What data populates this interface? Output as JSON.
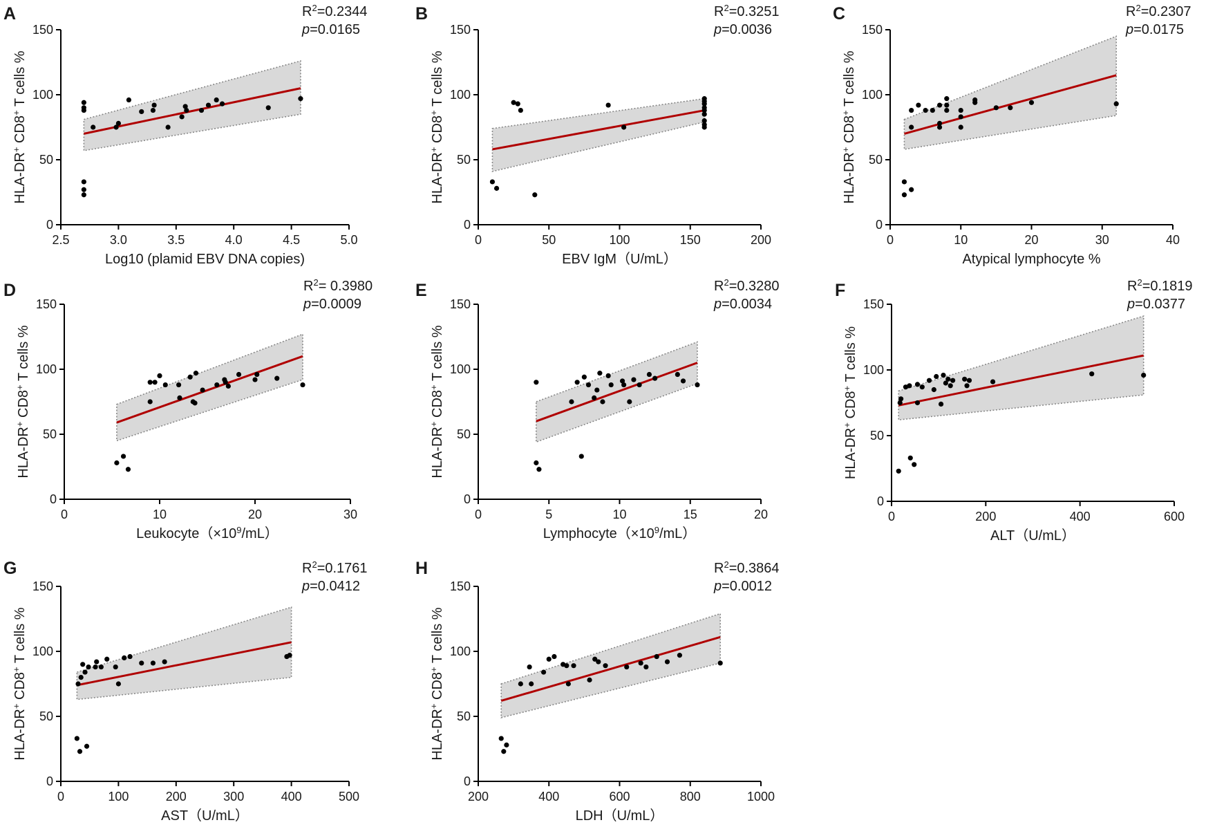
{
  "figure": {
    "ylabel": "HLA-DR⁺ CD8⁺ T cells %"
  },
  "chart_data": [
    {
      "panel": "A",
      "type": "scatter",
      "xlabel": "Log10 (plamid EBV DNA copies)",
      "ylabel": "HLA-DR⁺ CD8⁺ T cells %",
      "stats": {
        "r2_label": "R²=0.2344",
        "p_label": "=0.0165",
        "p_symbol": "p"
      },
      "xlim": [
        2.5,
        5.0
      ],
      "ylim": [
        0,
        150
      ],
      "xticks": [
        2.5,
        3.0,
        3.5,
        4.0,
        4.5,
        5.0
      ],
      "xtick_labels": [
        "2.5",
        "3.0",
        "3.5",
        "4.0",
        "4.5",
        "5.0"
      ],
      "yticks": [
        0,
        50,
        100,
        150
      ],
      "ytick_labels": [
        "0",
        "50",
        "100",
        "150"
      ],
      "fit": {
        "x": [
          2.7,
          4.58
        ],
        "y": [
          70,
          105
        ],
        "lower": [
          57,
          85
        ],
        "upper": [
          81,
          126
        ]
      },
      "points": [
        [
          2.7,
          94
        ],
        [
          2.7,
          90
        ],
        [
          2.7,
          88
        ],
        [
          2.7,
          33
        ],
        [
          2.7,
          27
        ],
        [
          2.7,
          23
        ],
        [
          2.78,
          75
        ],
        [
          2.98,
          75
        ],
        [
          3.0,
          78
        ],
        [
          3.09,
          96
        ],
        [
          3.2,
          87
        ],
        [
          3.3,
          88
        ],
        [
          3.31,
          92
        ],
        [
          3.43,
          75
        ],
        [
          3.55,
          83
        ],
        [
          3.58,
          91
        ],
        [
          3.59,
          88
        ],
        [
          3.72,
          88
        ],
        [
          3.78,
          92
        ],
        [
          3.85,
          96
        ],
        [
          3.9,
          93
        ],
        [
          4.3,
          90
        ],
        [
          4.58,
          97
        ]
      ]
    },
    {
      "panel": "B",
      "type": "scatter",
      "xlabel": "EBV IgM（U/mL）",
      "ylabel": "HLA-DR⁺ CD8⁺ T cells %",
      "stats": {
        "r2_label": "R²=0.3251",
        "p_label": "=0.0036",
        "p_symbol": "p"
      },
      "xlim": [
        0,
        200
      ],
      "ylim": [
        0,
        150
      ],
      "xticks": [
        0,
        50,
        100,
        150,
        200
      ],
      "xtick_labels": [
        "0",
        "50",
        "100",
        "150",
        "200"
      ],
      "yticks": [
        0,
        50,
        100,
        150
      ],
      "ytick_labels": [
        "0",
        "50",
        "100",
        "150"
      ],
      "fit": {
        "x": [
          10,
          160
        ],
        "y": [
          58,
          88
        ],
        "lower": [
          41,
          79
        ],
        "upper": [
          74,
          97
        ]
      },
      "points": [
        [
          10,
          33
        ],
        [
          13,
          28
        ],
        [
          25,
          94
        ],
        [
          28,
          93
        ],
        [
          30,
          88
        ],
        [
          40,
          23
        ],
        [
          92,
          92
        ],
        [
          103,
          75
        ],
        [
          160,
          97
        ],
        [
          160,
          95
        ],
        [
          160,
          93
        ],
        [
          160,
          90
        ],
        [
          160,
          88
        ],
        [
          160,
          85
        ],
        [
          160,
          80
        ],
        [
          160,
          77
        ],
        [
          160,
          75
        ]
      ]
    },
    {
      "panel": "C",
      "type": "scatter",
      "xlabel": "Atypical lymphocyte %",
      "ylabel": "HLA-DR⁺ CD8⁺ T cells %",
      "stats": {
        "r2_label": "R²=0.2307",
        "p_label": "=0.0175",
        "p_symbol": "p"
      },
      "xlim": [
        0,
        40
      ],
      "ylim": [
        0,
        150
      ],
      "xticks": [
        0,
        10,
        20,
        30,
        40
      ],
      "xtick_labels": [
        "0",
        "10",
        "20",
        "30",
        "40"
      ],
      "yticks": [
        0,
        50,
        100,
        150
      ],
      "ytick_labels": [
        "0",
        "50",
        "100",
        "150"
      ],
      "fit": {
        "x": [
          2,
          32
        ],
        "y": [
          70,
          115
        ],
        "lower": [
          58,
          84
        ],
        "upper": [
          81,
          145
        ]
      },
      "points": [
        [
          2,
          33
        ],
        [
          2,
          23
        ],
        [
          3,
          27
        ],
        [
          3,
          75
        ],
        [
          3,
          88
        ],
        [
          4,
          92
        ],
        [
          5,
          88
        ],
        [
          6,
          88
        ],
        [
          7,
          78
        ],
        [
          7,
          75
        ],
        [
          7,
          92
        ],
        [
          8,
          97
        ],
        [
          8,
          92
        ],
        [
          8,
          88
        ],
        [
          10,
          88
        ],
        [
          10,
          83
        ],
        [
          10,
          75
        ],
        [
          12,
          96
        ],
        [
          12,
          94
        ],
        [
          15,
          90
        ],
        [
          17,
          90
        ],
        [
          20,
          94
        ],
        [
          32,
          93
        ]
      ]
    },
    {
      "panel": "D",
      "type": "scatter",
      "xlabel": "Leukocyte（×10⁹/mL）",
      "ylabel": "HLA-DR⁺ CD8⁺ T cells %",
      "stats": {
        "r2_label": "R²= 0.3980",
        "p_label": "=0.0009",
        "p_symbol": "p"
      },
      "xlim": [
        0,
        30
      ],
      "ylim": [
        0,
        150
      ],
      "xticks": [
        0,
        10,
        20,
        30
      ],
      "xtick_labels": [
        "0",
        "10",
        "20",
        "30"
      ],
      "yticks": [
        0,
        50,
        100,
        150
      ],
      "ytick_labels": [
        "0",
        "50",
        "100",
        "150"
      ],
      "fit": {
        "x": [
          5.5,
          25
        ],
        "y": [
          59,
          110
        ],
        "lower": [
          45,
          92
        ],
        "upper": [
          73,
          127
        ]
      },
      "points": [
        [
          5.5,
          28
        ],
        [
          6.2,
          33
        ],
        [
          6.7,
          23
        ],
        [
          9,
          75
        ],
        [
          9,
          90
        ],
        [
          9.5,
          90
        ],
        [
          10,
          95
        ],
        [
          10.6,
          88
        ],
        [
          12,
          88
        ],
        [
          12.1,
          78
        ],
        [
          13.2,
          94
        ],
        [
          13.5,
          75
        ],
        [
          13.7,
          74
        ],
        [
          13.8,
          97
        ],
        [
          14.5,
          84
        ],
        [
          16,
          88
        ],
        [
          16.8,
          92
        ],
        [
          16.9,
          90
        ],
        [
          17.2,
          87
        ],
        [
          18.3,
          96
        ],
        [
          20,
          92
        ],
        [
          20.2,
          96
        ],
        [
          22.3,
          93
        ],
        [
          25,
          88
        ]
      ]
    },
    {
      "panel": "E",
      "type": "scatter",
      "xlabel": "Lymphocyte（×10⁹/mL）",
      "ylabel": "HLA-DR⁺ CD8⁺ T cells %",
      "stats": {
        "r2_label": "R²=0.3280",
        "p_label": "=0.0034",
        "p_symbol": "p"
      },
      "xlim": [
        0,
        20
      ],
      "ylim": [
        0,
        150
      ],
      "xticks": [
        0,
        5,
        10,
        15,
        20
      ],
      "xtick_labels": [
        "0",
        "5",
        "10",
        "15",
        "20"
      ],
      "yticks": [
        0,
        50,
        100,
        150
      ],
      "ytick_labels": [
        "0",
        "50",
        "100",
        "150"
      ],
      "fit": {
        "x": [
          4.1,
          15.5
        ],
        "y": [
          60,
          105
        ],
        "lower": [
          44,
          89
        ],
        "upper": [
          75,
          121
        ]
      },
      "points": [
        [
          4.1,
          90
        ],
        [
          4.1,
          28
        ],
        [
          4.3,
          23
        ],
        [
          6.6,
          75
        ],
        [
          7,
          90
        ],
        [
          7.3,
          33
        ],
        [
          7.5,
          94
        ],
        [
          7.8,
          88
        ],
        [
          8.2,
          78
        ],
        [
          8.4,
          84
        ],
        [
          8.6,
          97
        ],
        [
          8.8,
          75
        ],
        [
          9.2,
          95
        ],
        [
          9.4,
          88
        ],
        [
          10.2,
          91
        ],
        [
          10.3,
          88
        ],
        [
          10.7,
          75
        ],
        [
          11,
          92
        ],
        [
          11.4,
          88
        ],
        [
          12.1,
          96
        ],
        [
          12.5,
          93
        ],
        [
          14.1,
          96
        ],
        [
          14.5,
          91
        ],
        [
          15.5,
          88
        ]
      ]
    },
    {
      "panel": "F",
      "type": "scatter",
      "xlabel": "ALT（U/mL）",
      "ylabel": "HLA-DR⁺ CD8⁺ T cells %",
      "stats": {
        "r2_label": "R²=0.1819",
        "p_label": "=0.0377",
        "p_symbol": "p"
      },
      "xlim": [
        0,
        600
      ],
      "ylim": [
        0,
        150
      ],
      "xticks": [
        0,
        200,
        400,
        600
      ],
      "xtick_labels": [
        "0",
        "200",
        "400",
        "600"
      ],
      "yticks": [
        0,
        50,
        100,
        150
      ],
      "ytick_labels": [
        "0",
        "50",
        "100",
        "150"
      ],
      "fit": {
        "x": [
          15,
          535
        ],
        "y": [
          73,
          111
        ],
        "lower": [
          62,
          81
        ],
        "upper": [
          84,
          141
        ]
      },
      "points": [
        [
          15,
          23
        ],
        [
          18,
          75
        ],
        [
          20,
          78
        ],
        [
          30,
          87
        ],
        [
          38,
          88
        ],
        [
          40,
          33
        ],
        [
          48,
          28
        ],
        [
          55,
          75
        ],
        [
          55,
          89
        ],
        [
          65,
          87
        ],
        [
          80,
          92
        ],
        [
          90,
          85
        ],
        [
          95,
          95
        ],
        [
          105,
          74
        ],
        [
          110,
          96
        ],
        [
          115,
          90
        ],
        [
          120,
          93
        ],
        [
          125,
          88
        ],
        [
          130,
          92
        ],
        [
          155,
          93
        ],
        [
          160,
          88
        ],
        [
          165,
          92
        ],
        [
          215,
          91
        ],
        [
          425,
          97
        ],
        [
          535,
          96
        ]
      ]
    },
    {
      "panel": "G",
      "type": "scatter",
      "xlabel": "AST（U/mL）",
      "ylabel": "HLA-DR⁺ CD8⁺ T cells %",
      "stats": {
        "r2_label": "R²=0.1761",
        "p_label": "=0.0412",
        "p_symbol": "p"
      },
      "xlim": [
        0,
        500
      ],
      "ylim": [
        0,
        150
      ],
      "xticks": [
        0,
        100,
        200,
        300,
        400,
        500
      ],
      "xtick_labels": [
        "0",
        "100",
        "200",
        "300",
        "400",
        "500"
      ],
      "yticks": [
        0,
        50,
        100,
        150
      ],
      "ytick_labels": [
        "0",
        "50",
        "100",
        "150"
      ],
      "fit": {
        "x": [
          28,
          400
        ],
        "y": [
          74,
          107
        ],
        "lower": [
          63,
          80
        ],
        "upper": [
          84,
          134
        ]
      },
      "points": [
        [
          28,
          33
        ],
        [
          30,
          75
        ],
        [
          33,
          23
        ],
        [
          35,
          80
        ],
        [
          38,
          90
        ],
        [
          42,
          84
        ],
        [
          45,
          27
        ],
        [
          48,
          88
        ],
        [
          60,
          88
        ],
        [
          62,
          92
        ],
        [
          70,
          88
        ],
        [
          80,
          94
        ],
        [
          95,
          88
        ],
        [
          100,
          75
        ],
        [
          110,
          95
        ],
        [
          120,
          96
        ],
        [
          140,
          91
        ],
        [
          160,
          91
        ],
        [
          180,
          92
        ],
        [
          392,
          96
        ],
        [
          397,
          97
        ]
      ]
    },
    {
      "panel": "H",
      "type": "scatter",
      "xlabel": "LDH（U/mL）",
      "ylabel": "HLA-DR⁺ CD8⁺ T cells %",
      "stats": {
        "r2_label": "R²=0.3864",
        "p_label": "=0.0012",
        "p_symbol": "p"
      },
      "xlim": [
        200,
        1000
      ],
      "ylim": [
        0,
        150
      ],
      "xticks": [
        200,
        400,
        600,
        800,
        1000
      ],
      "xtick_labels": [
        "200",
        "400",
        "600",
        "800",
        "1000"
      ],
      "yticks": [
        0,
        50,
        100,
        150
      ],
      "ytick_labels": [
        "0",
        "50",
        "100",
        "150"
      ],
      "fit": {
        "x": [
          265,
          885
        ],
        "y": [
          62,
          111
        ],
        "lower": [
          49,
          91
        ],
        "upper": [
          75,
          129
        ]
      },
      "points": [
        [
          265,
          33
        ],
        [
          272,
          23
        ],
        [
          280,
          28
        ],
        [
          320,
          75
        ],
        [
          345,
          88
        ],
        [
          350,
          75
        ],
        [
          385,
          84
        ],
        [
          400,
          94
        ],
        [
          415,
          96
        ],
        [
          440,
          90
        ],
        [
          450,
          89
        ],
        [
          455,
          75
        ],
        [
          470,
          89
        ],
        [
          515,
          78
        ],
        [
          530,
          94
        ],
        [
          540,
          92
        ],
        [
          560,
          89
        ],
        [
          620,
          88
        ],
        [
          660,
          91
        ],
        [
          675,
          88
        ],
        [
          705,
          96
        ],
        [
          735,
          92
        ],
        [
          770,
          97
        ],
        [
          885,
          91
        ]
      ]
    }
  ]
}
